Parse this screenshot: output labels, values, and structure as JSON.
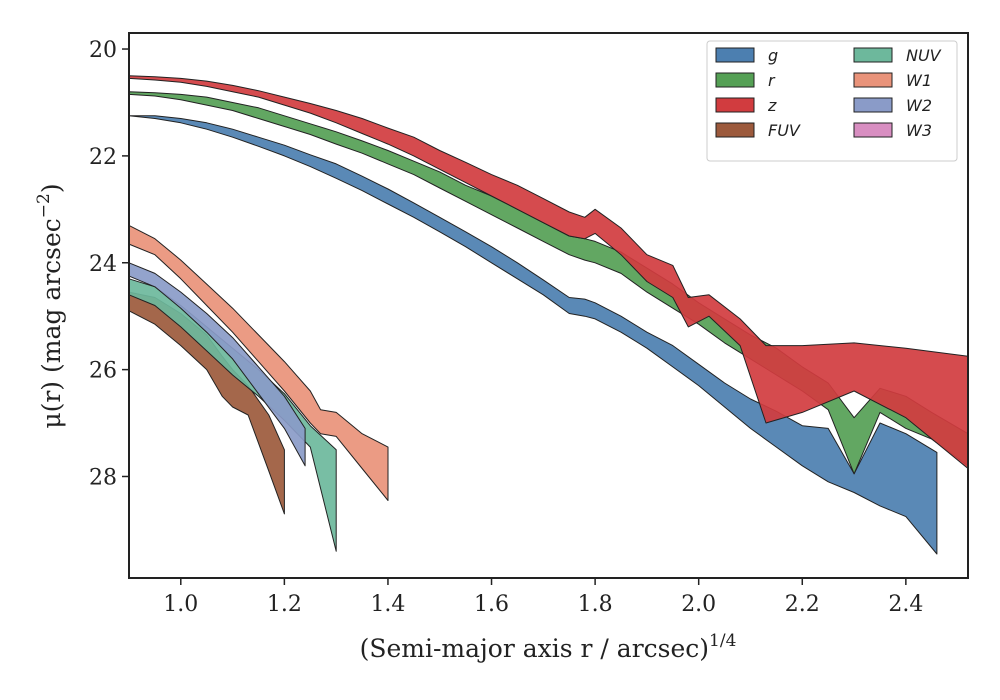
{
  "chart_data": {
    "type": "area",
    "xlabel": "(Semi-major axis r / arcsec)",
    "xlabel_exponent": "1/4",
    "ylabel": "μ(r) (mag arcsec",
    "ylabel_exponent": "−2",
    "ylabel_close": ")",
    "xlim": [
      0.9,
      2.52
    ],
    "ylim": [
      29.9,
      19.7
    ],
    "y_inverted": true,
    "xticks": [
      1.0,
      1.2,
      1.4,
      1.6,
      1.8,
      2.0,
      2.2,
      2.4
    ],
    "xtick_labels": [
      "1.0",
      "1.2",
      "1.4",
      "1.6",
      "1.8",
      "2.0",
      "2.2",
      "2.4"
    ],
    "yticks": [
      20,
      22,
      24,
      26,
      28
    ],
    "ytick_labels": [
      "20",
      "22",
      "24",
      "26",
      "28"
    ],
    "grid": false,
    "legend_position": "top-right",
    "legend_columns": 2,
    "series": [
      {
        "name": "g",
        "color": "#4c7fb0",
        "x": [
          0.9,
          0.95,
          1.0,
          1.05,
          1.1,
          1.15,
          1.2,
          1.25,
          1.3,
          1.35,
          1.4,
          1.45,
          1.5,
          1.55,
          1.6,
          1.65,
          1.7,
          1.75,
          1.78,
          1.8,
          1.85,
          1.9,
          1.95,
          2.0,
          2.05,
          2.1,
          2.15,
          2.2,
          2.25,
          2.3,
          2.35,
          2.4,
          2.46
        ],
        "upper": [
          21.25,
          21.3,
          21.38,
          21.5,
          21.65,
          21.82,
          22.0,
          22.2,
          22.42,
          22.65,
          22.9,
          23.15,
          23.42,
          23.7,
          24.0,
          24.3,
          24.6,
          24.95,
          25.0,
          25.05,
          25.3,
          25.6,
          25.95,
          26.3,
          26.7,
          27.1,
          27.45,
          27.8,
          28.1,
          28.3,
          28.55,
          28.75,
          29.45
        ],
        "lower": [
          21.25,
          21.25,
          21.3,
          21.38,
          21.5,
          21.65,
          21.8,
          21.98,
          22.15,
          22.38,
          22.62,
          22.88,
          23.15,
          23.42,
          23.7,
          24.0,
          24.32,
          24.65,
          24.68,
          24.75,
          25.0,
          25.3,
          25.55,
          25.9,
          26.25,
          26.55,
          26.78,
          27.05,
          27.1,
          27.95,
          27.0,
          27.2,
          27.55
        ]
      },
      {
        "name": "r",
        "color": "#55a055",
        "x": [
          0.9,
          0.95,
          1.0,
          1.05,
          1.1,
          1.15,
          1.2,
          1.25,
          1.3,
          1.35,
          1.4,
          1.45,
          1.5,
          1.55,
          1.6,
          1.65,
          1.7,
          1.75,
          1.78,
          1.8,
          1.85,
          1.9,
          1.95,
          2.0,
          2.05,
          2.1,
          2.15,
          2.2,
          2.25,
          2.3,
          2.35,
          2.4,
          2.45,
          2.52
        ],
        "upper": [
          20.85,
          20.88,
          20.95,
          21.05,
          21.15,
          21.3,
          21.45,
          21.6,
          21.78,
          21.95,
          22.15,
          22.35,
          22.6,
          22.85,
          23.1,
          23.35,
          23.6,
          23.85,
          23.95,
          24.0,
          24.2,
          24.55,
          24.85,
          25.15,
          25.5,
          25.8,
          26.1,
          26.4,
          26.75,
          27.95,
          26.8,
          27.1,
          27.3,
          27.8
        ],
        "lower": [
          20.8,
          20.82,
          20.85,
          20.9,
          21.0,
          21.1,
          21.25,
          21.4,
          21.55,
          21.72,
          21.9,
          22.1,
          22.3,
          22.55,
          22.75,
          23.0,
          23.25,
          23.5,
          23.55,
          23.6,
          23.8,
          24.1,
          24.4,
          24.75,
          25.05,
          25.35,
          25.6,
          25.95,
          26.25,
          26.9,
          26.35,
          26.5,
          26.8,
          27.2
        ]
      },
      {
        "name": "z",
        "color": "#d13c3f",
        "x": [
          0.9,
          0.95,
          1.0,
          1.05,
          1.1,
          1.15,
          1.2,
          1.25,
          1.3,
          1.35,
          1.4,
          1.45,
          1.5,
          1.55,
          1.6,
          1.65,
          1.7,
          1.75,
          1.78,
          1.8,
          1.85,
          1.9,
          1.95,
          1.98,
          2.02,
          2.08,
          2.13,
          2.2,
          2.3,
          2.4,
          2.52
        ],
        "upper": [
          20.55,
          20.58,
          20.62,
          20.7,
          20.8,
          20.9,
          21.05,
          21.2,
          21.38,
          21.58,
          21.78,
          22.0,
          22.25,
          22.5,
          22.75,
          23.0,
          23.25,
          23.5,
          23.55,
          23.45,
          23.85,
          24.35,
          24.65,
          25.2,
          25.0,
          25.55,
          27.0,
          26.8,
          26.4,
          26.9,
          27.85
        ],
        "lower": [
          20.5,
          20.52,
          20.55,
          20.6,
          20.68,
          20.78,
          20.9,
          21.02,
          21.15,
          21.3,
          21.48,
          21.65,
          21.9,
          22.12,
          22.35,
          22.55,
          22.8,
          23.05,
          23.15,
          23.0,
          23.35,
          23.85,
          24.05,
          24.65,
          24.6,
          25.05,
          25.55,
          25.55,
          25.5,
          25.6,
          25.75
        ]
      },
      {
        "name": "FUV",
        "color": "#9c5a3c",
        "x": [
          0.9,
          0.95,
          1.0,
          1.05,
          1.08,
          1.1,
          1.13,
          1.17,
          1.2
        ],
        "upper": [
          24.9,
          25.15,
          25.55,
          26.0,
          26.5,
          26.7,
          26.85,
          27.9,
          28.7
        ],
        "lower": [
          24.55,
          24.65,
          24.95,
          25.35,
          25.75,
          26.0,
          26.3,
          26.85,
          27.5
        ]
      },
      {
        "name": "NUV",
        "color": "#6db89c",
        "x": [
          0.9,
          0.95,
          1.0,
          1.05,
          1.1,
          1.15,
          1.2,
          1.25,
          1.3
        ],
        "upper": [
          24.6,
          24.8,
          25.2,
          25.65,
          26.1,
          26.5,
          26.95,
          27.45,
          29.4
        ],
        "lower": [
          24.3,
          24.45,
          24.8,
          25.2,
          25.6,
          26.0,
          26.45,
          27.05,
          27.5
        ]
      },
      {
        "name": "W1",
        "color": "#e9937a",
        "x": [
          0.9,
          0.95,
          1.0,
          1.05,
          1.1,
          1.15,
          1.2,
          1.25,
          1.27,
          1.3,
          1.35,
          1.4
        ],
        "upper": [
          23.65,
          23.85,
          24.3,
          24.8,
          25.3,
          25.85,
          26.4,
          27.0,
          27.2,
          27.25,
          27.85,
          28.45
        ],
        "lower": [
          23.3,
          23.55,
          23.95,
          24.4,
          24.85,
          25.35,
          25.85,
          26.4,
          26.75,
          26.8,
          27.2,
          27.45
        ]
      },
      {
        "name": "W2",
        "color": "#8a9bc8",
        "x": [
          0.9,
          0.95,
          1.0,
          1.05,
          1.1,
          1.15,
          1.2,
          1.24
        ],
        "upper": [
          24.25,
          24.45,
          24.85,
          25.3,
          25.8,
          26.45,
          27.1,
          27.8
        ],
        "lower": [
          24.0,
          24.2,
          24.55,
          24.95,
          25.4,
          25.95,
          26.5,
          27.1
        ]
      },
      {
        "name": "W3",
        "color": "#d88ec1",
        "x": [],
        "upper": [],
        "lower": []
      }
    ]
  }
}
